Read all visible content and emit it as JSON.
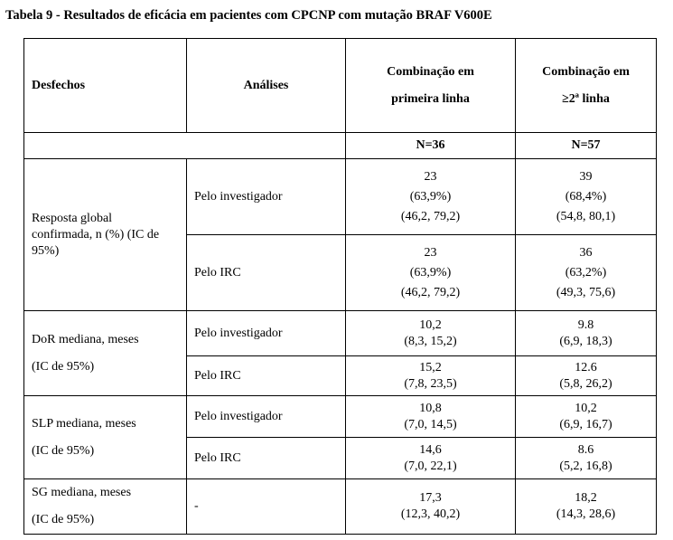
{
  "caption": "Tabela 9 - Resultados de eficácia em pacientes com CPCNP com mutação BRAF V600E",
  "headers": {
    "desfechos": "Desfechos",
    "analises": "Análises",
    "col1": [
      "Combinação em",
      "primeira linha"
    ],
    "col2": [
      "Combinação em",
      "≥2ª linha"
    ]
  },
  "n_row": {
    "col1": "N=36",
    "col2": "N=57"
  },
  "groups": [
    {
      "outcome": [
        "Resposta global",
        "confirmada, n (%) (IC de",
        "95%)"
      ],
      "rows": [
        {
          "analysis": "Pelo investigador",
          "col1": [
            "23",
            "(63,9%)",
            "(46,2, 79,2)"
          ],
          "col2": [
            "39",
            "(68,4%)",
            "(54,8, 80,1)"
          ]
        },
        {
          "analysis": "Pelo IRC",
          "col1": [
            "23",
            "(63,9%)",
            "(46,2, 79,2)"
          ],
          "col2": [
            "36",
            "(63,2%)",
            "(49,3, 75,6)"
          ]
        }
      ]
    },
    {
      "outcome": [
        "DoR mediana, meses",
        "(IC de 95%)"
      ],
      "rows": [
        {
          "analysis": "Pelo investigador",
          "col1": [
            "10,2",
            "(8,3, 15,2)"
          ],
          "col2": [
            "9.8",
            "(6,9, 18,3)"
          ]
        },
        {
          "analysis": "Pelo IRC",
          "col1": [
            "15,2",
            "(7,8, 23,5)"
          ],
          "col2": [
            "12.6",
            "(5,8, 26,2)"
          ]
        }
      ]
    },
    {
      "outcome": [
        "SLP mediana, meses",
        "(IC de 95%)"
      ],
      "rows": [
        {
          "analysis": "Pelo investigador",
          "col1": [
            "10,8",
            "(7,0, 14,5)"
          ],
          "col2": [
            "10,2",
            "(6,9, 16,7)"
          ]
        },
        {
          "analysis": "Pelo IRC",
          "col1": [
            "14,6",
            "(7,0, 22,1)"
          ],
          "col2": [
            "8.6",
            "(5,2, 16,8)"
          ]
        }
      ]
    },
    {
      "outcome": [
        "SG mediana, meses",
        "(IC de 95%)"
      ],
      "rows": [
        {
          "analysis": "-",
          "col1": [
            "17,3",
            "(12,3, 40,2)"
          ],
          "col2": [
            "18,2",
            "(14,3, 28,6)"
          ]
        }
      ]
    }
  ]
}
